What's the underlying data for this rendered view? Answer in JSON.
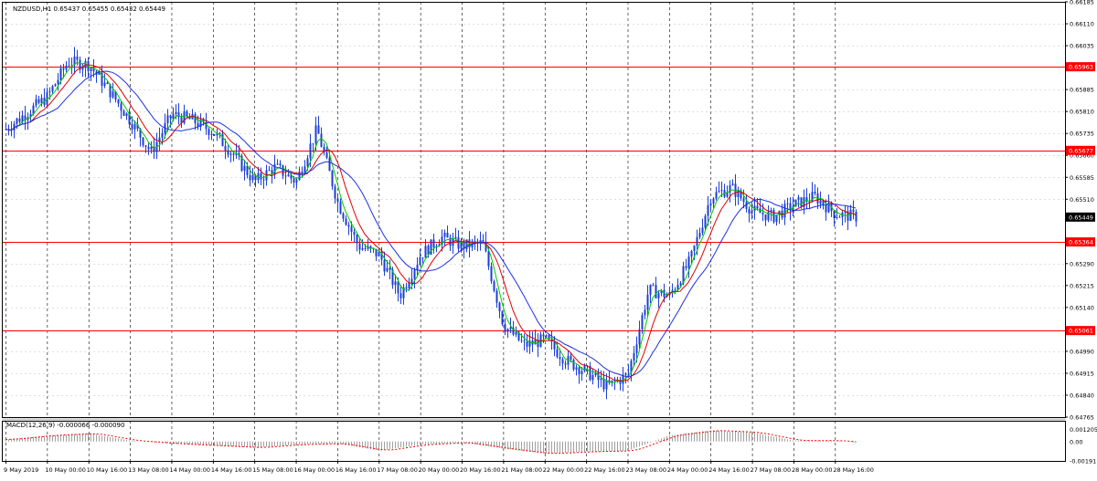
{
  "window": {
    "header_text": "NZDUSD,H1  0.65437 0.65455 0.65432 0.65449"
  },
  "colors": {
    "background": "#ffffff",
    "frame": "#000000",
    "grid": "#000000",
    "candles": "#1c3fd4",
    "ma_fast": "#00c800",
    "ma_medium": "#e00000",
    "ma_slow": "#1c2fe0",
    "level_line": "#ff0000",
    "level_label_bg": "#ff0000",
    "level_label_text": "#ffffff",
    "current_price_bg": "#000000",
    "current_price_text": "#ffffff",
    "macd_histogram": "#a0a0a0",
    "macd_signal": "#ff0000"
  },
  "chart_data": [
    {
      "type": "candlestick",
      "symbol": "NZDUSD",
      "timeframe": "H1",
      "ylim": [
        0.64765,
        0.66185
      ],
      "y_ticks": [
        "0.66185",
        "0.66110",
        "0.66035",
        "0.65885",
        "0.65810",
        "0.65735",
        "0.65660",
        "0.65585",
        "0.65510",
        "0.65290",
        "0.65215",
        "0.65140",
        "0.64990",
        "0.64915",
        "0.64840",
        "0.64765"
      ],
      "x_ticks": [
        "9 May 2019",
        "10 May 00:00",
        "10 May 16:00",
        "13 May 08:00",
        "14 May 00:00",
        "14 May 16:00",
        "15 May 08:00",
        "16 May 00:00",
        "16 May 16:00",
        "17 May 08:00",
        "20 May 00:00",
        "20 May 16:00",
        "21 May 08:00",
        "22 May 00:00",
        "22 May 16:00",
        "23 May 08:00",
        "24 May 00:00",
        "24 May 16:00",
        "27 May 08:00",
        "28 May 00:00",
        "28 May 16:00"
      ],
      "horizontal_levels": [
        {
          "value": 0.65963,
          "label": "0.65963"
        },
        {
          "value": 0.65677,
          "label": "0.65677"
        },
        {
          "value": 0.65364,
          "label": "0.65364"
        },
        {
          "value": 0.65061,
          "label": "0.65061"
        }
      ],
      "current_price": {
        "value": 0.65449,
        "label": "0.65449"
      },
      "ohlc": {
        "open": 0.65437,
        "high": 0.65455,
        "low": 0.65432,
        "close": 0.65449
      },
      "close_path": [
        {
          "x": "9 May 2019",
          "y": 0.6575
        },
        {
          "x": "10 May 00:00",
          "y": 0.6586
        },
        {
          "x": "10 May 08:00",
          "y": 0.6598
        },
        {
          "x": "10 May 16:00",
          "y": 0.6597
        },
        {
          "x": "13 May 00:00",
          "y": 0.6588
        },
        {
          "x": "13 May 08:00",
          "y": 0.6578
        },
        {
          "x": "13 May 16:00",
          "y": 0.6567
        },
        {
          "x": "14 May 00:00",
          "y": 0.658
        },
        {
          "x": "14 May 08:00",
          "y": 0.6578
        },
        {
          "x": "14 May 16:00",
          "y": 0.6574
        },
        {
          "x": "15 May 00:00",
          "y": 0.6566
        },
        {
          "x": "15 May 08:00",
          "y": 0.6557
        },
        {
          "x": "15 May 16:00",
          "y": 0.6562
        },
        {
          "x": "16 May 00:00",
          "y": 0.6557
        },
        {
          "x": "16 May 08:00",
          "y": 0.6575
        },
        {
          "x": "16 May 16:00",
          "y": 0.655
        },
        {
          "x": "17 May 00:00",
          "y": 0.6535
        },
        {
          "x": "17 May 08:00",
          "y": 0.6532
        },
        {
          "x": "17 May 16:00",
          "y": 0.6518
        },
        {
          "x": "20 May 00:00",
          "y": 0.6532
        },
        {
          "x": "20 May 08:00",
          "y": 0.6538
        },
        {
          "x": "20 May 16:00",
          "y": 0.6535
        },
        {
          "x": "21 May 00:00",
          "y": 0.6536
        },
        {
          "x": "21 May 08:00",
          "y": 0.6508
        },
        {
          "x": "21 May 16:00",
          "y": 0.6501
        },
        {
          "x": "22 May 00:00",
          "y": 0.6503
        },
        {
          "x": "22 May 08:00",
          "y": 0.6496
        },
        {
          "x": "22 May 16:00",
          "y": 0.6492
        },
        {
          "x": "23 May 00:00",
          "y": 0.6487
        },
        {
          "x": "23 May 08:00",
          "y": 0.6491
        },
        {
          "x": "23 May 16:00",
          "y": 0.652
        },
        {
          "x": "24 May 00:00",
          "y": 0.6518
        },
        {
          "x": "24 May 08:00",
          "y": 0.653
        },
        {
          "x": "24 May 16:00",
          "y": 0.6552
        },
        {
          "x": "27 May 00:00",
          "y": 0.6555
        },
        {
          "x": "27 May 08:00",
          "y": 0.6547
        },
        {
          "x": "27 May 16:00",
          "y": 0.6545
        },
        {
          "x": "28 May 00:00",
          "y": 0.6549
        },
        {
          "x": "28 May 08:00",
          "y": 0.6552
        },
        {
          "x": "28 May 16:00",
          "y": 0.6546
        },
        {
          "x": "29 May 00:00",
          "y": 0.6545
        }
      ]
    },
    {
      "type": "bar",
      "indicator_label": "MACD(12,26,9) -0.000066 -0.000090",
      "ylim": [
        -0.00191,
        0.00205
      ],
      "y_ticks": [
        "0.001205",
        "0.00",
        "-0.00191"
      ],
      "macd_path": [
        {
          "x": "9 May 2019",
          "y": 0.0002
        },
        {
          "x": "10 May 00:00",
          "y": 0.0006
        },
        {
          "x": "10 May 16:00",
          "y": 0.0008
        },
        {
          "x": "13 May 08:00",
          "y": 0.0001
        },
        {
          "x": "14 May 00:00",
          "y": -0.0002
        },
        {
          "x": "14 May 16:00",
          "y": -0.0004
        },
        {
          "x": "15 May 08:00",
          "y": -0.0006
        },
        {
          "x": "16 May 00:00",
          "y": -0.0003
        },
        {
          "x": "16 May 16:00",
          "y": -0.0002
        },
        {
          "x": "17 May 08:00",
          "y": -0.0009
        },
        {
          "x": "20 May 00:00",
          "y": -0.0003
        },
        {
          "x": "20 May 16:00",
          "y": -0.0001
        },
        {
          "x": "21 May 08:00",
          "y": -0.0007
        },
        {
          "x": "22 May 00:00",
          "y": -0.0012
        },
        {
          "x": "22 May 16:00",
          "y": -0.001
        },
        {
          "x": "23 May 08:00",
          "y": -0.0009
        },
        {
          "x": "24 May 00:00",
          "y": 0.0006
        },
        {
          "x": "24 May 16:00",
          "y": 0.0011
        },
        {
          "x": "27 May 08:00",
          "y": 0.0009
        },
        {
          "x": "28 May 00:00",
          "y": 0.0001
        },
        {
          "x": "28 May 16:00",
          "y": 0.0001
        },
        {
          "x": "29 May 00:00",
          "y": -0.0001
        }
      ]
    }
  ]
}
